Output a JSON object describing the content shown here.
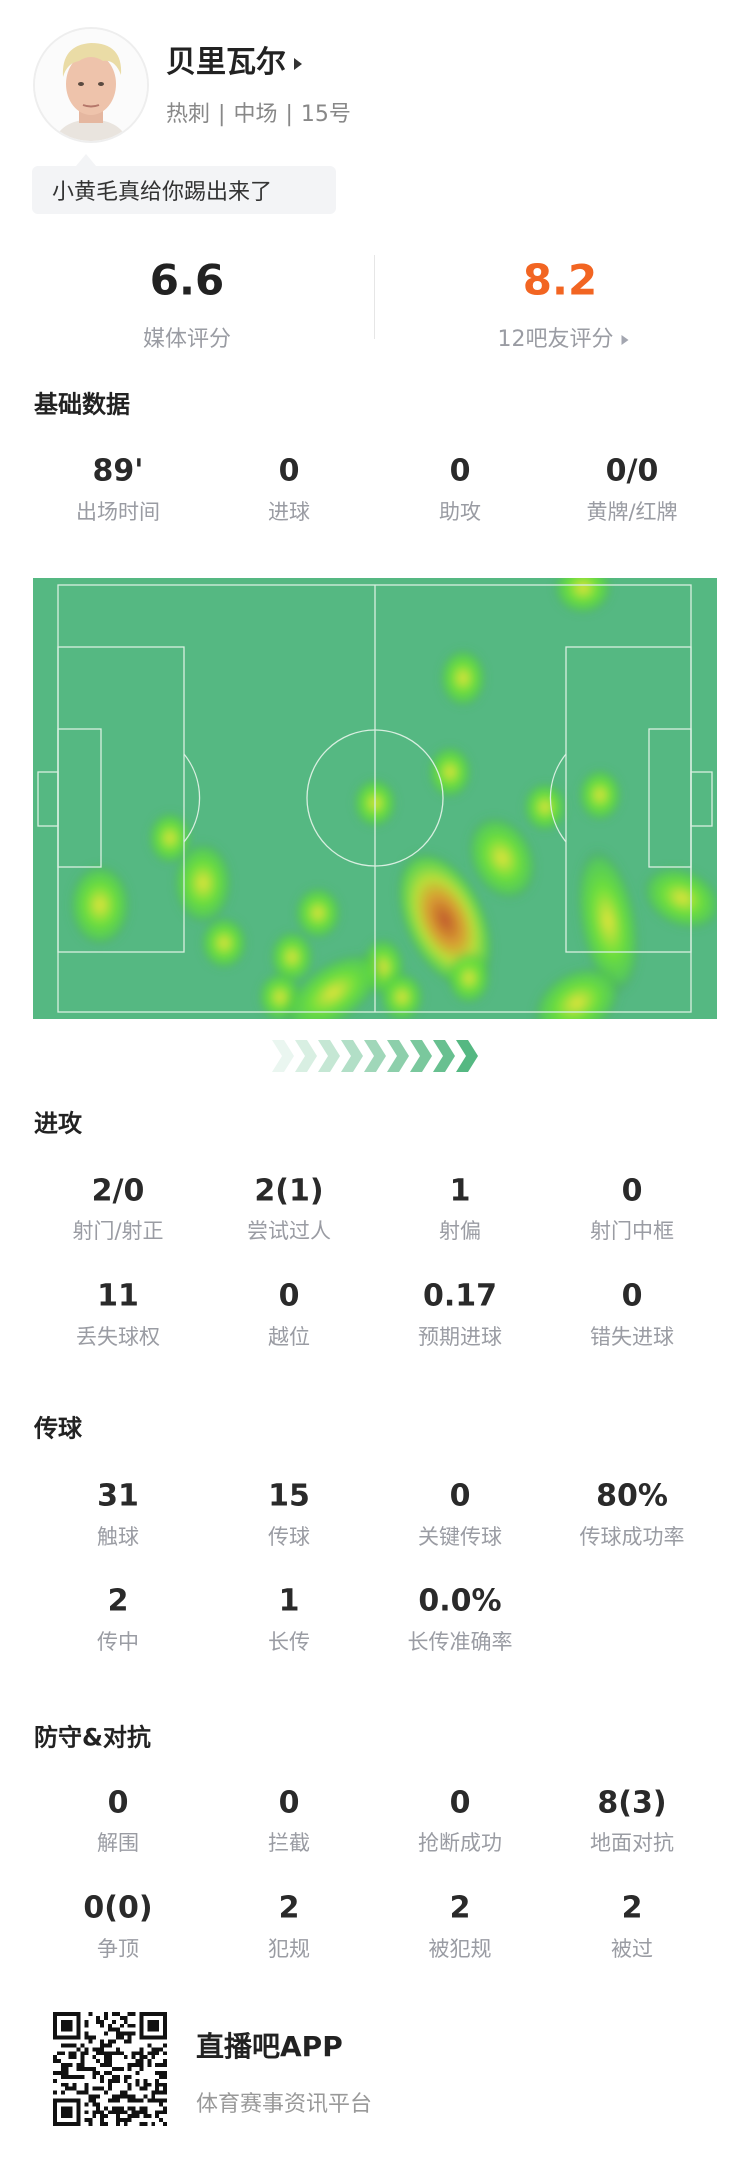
{
  "player": {
    "name": "贝里瓦尔",
    "team": "热刺",
    "position": "中场",
    "number": "15号",
    "comment": "小黄毛真给你踢出来了"
  },
  "ratings": {
    "media_score": "6.6",
    "media_label": "媒体评分",
    "fan_score": "8.2",
    "fan_label": "12吧友评分",
    "fan_color": "#f26522"
  },
  "basic": {
    "title": "基础数据",
    "stats": [
      {
        "value": "89'",
        "label": "出场时间"
      },
      {
        "value": "0",
        "label": "进球"
      },
      {
        "value": "0",
        "label": "助攻"
      },
      {
        "value": "0/0",
        "label": "黄牌/红牌"
      }
    ]
  },
  "heatmap": {
    "pitch_color": "#55b882",
    "direction": "attacking-right"
  },
  "attack": {
    "title": "进攻",
    "stats": [
      {
        "value": "2/0",
        "label": "射门/射正"
      },
      {
        "value": "2(1)",
        "label": "尝试过人"
      },
      {
        "value": "1",
        "label": "射偏"
      },
      {
        "value": "0",
        "label": "射门中框"
      },
      {
        "value": "11",
        "label": "丢失球权"
      },
      {
        "value": "0",
        "label": "越位"
      },
      {
        "value": "0.17",
        "label": "预期进球"
      },
      {
        "value": "0",
        "label": "错失进球"
      }
    ]
  },
  "passing": {
    "title": "传球",
    "stats": [
      {
        "value": "31",
        "label": "触球"
      },
      {
        "value": "15",
        "label": "传球"
      },
      {
        "value": "0",
        "label": "关键传球"
      },
      {
        "value": "80%",
        "label": "传球成功率"
      },
      {
        "value": "2",
        "label": "传中"
      },
      {
        "value": "1",
        "label": "长传"
      },
      {
        "value": "0.0%",
        "label": "长传准确率"
      }
    ]
  },
  "defense": {
    "title": "防守&对抗",
    "stats": [
      {
        "value": "0",
        "label": "解围"
      },
      {
        "value": "0",
        "label": "拦截"
      },
      {
        "value": "0",
        "label": "抢断成功"
      },
      {
        "value": "8(3)",
        "label": "地面对抗"
      },
      {
        "value": "0(0)",
        "label": "争顶"
      },
      {
        "value": "2",
        "label": "犯规"
      },
      {
        "value": "2",
        "label": "被犯规"
      },
      {
        "value": "2",
        "label": "被过"
      }
    ]
  },
  "footer": {
    "app_name": "直播吧APP",
    "tagline": "体育赛事资讯平台"
  }
}
